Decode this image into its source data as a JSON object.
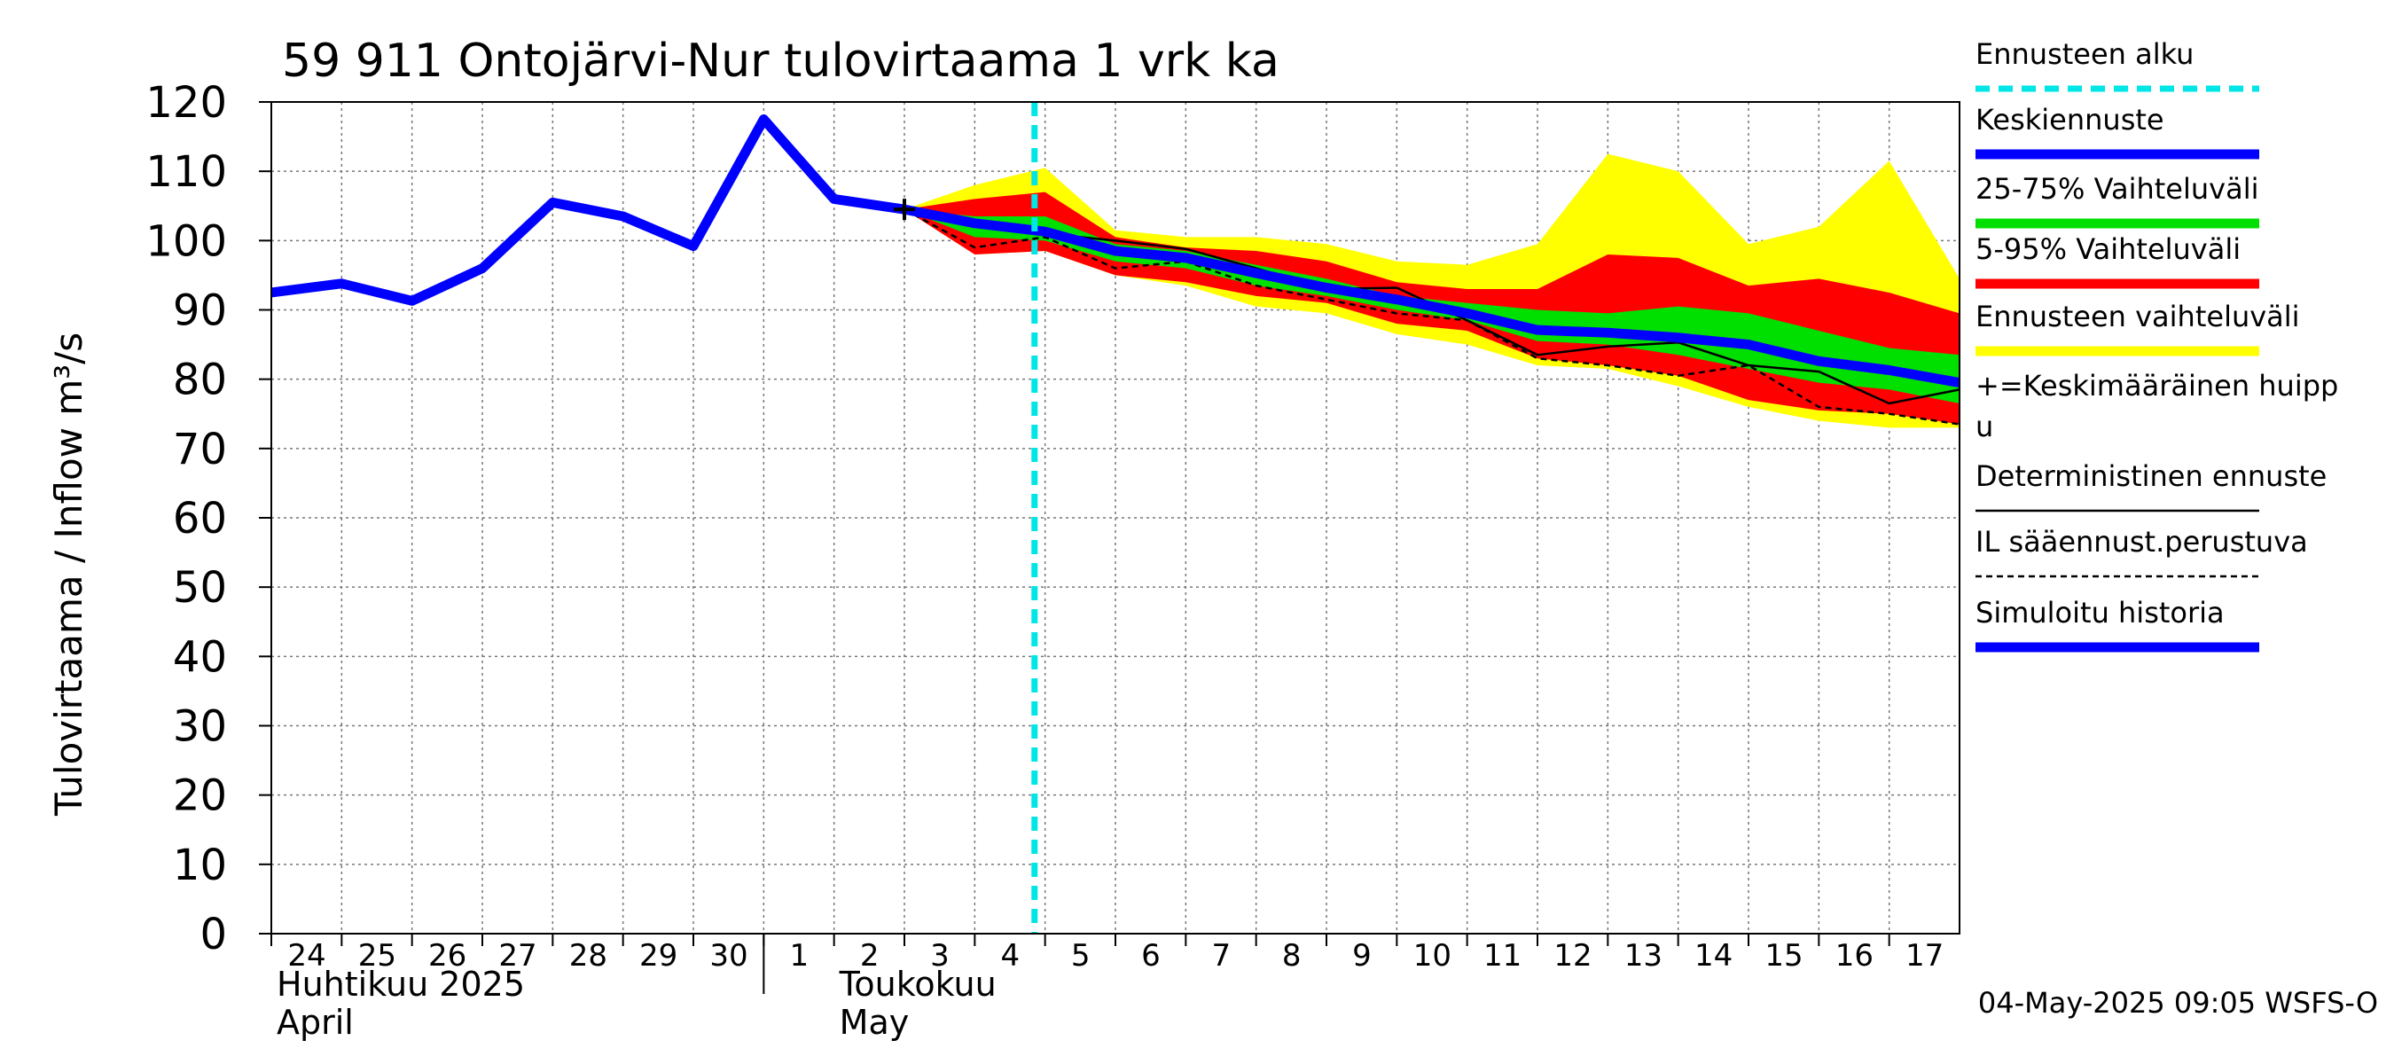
{
  "chart_data": {
    "type": "line",
    "title": "59 911 Ontojärvi-Nur tulovirtaama 1 vrk ka",
    "ylabel": "Tulovirtaama / Inflow    m³/s",
    "ylim": [
      0,
      120
    ],
    "yticks": [
      "0",
      "10",
      "20",
      "30",
      "40",
      "50",
      "60",
      "70",
      "80",
      "90",
      "100",
      "110",
      "120"
    ],
    "x_range": [
      24,
      48
    ],
    "x_tick_labels": [
      "24",
      "25",
      "26",
      "27",
      "28",
      "29",
      "30",
      "1",
      "2",
      "3",
      "4",
      "5",
      "6",
      "7",
      "8",
      "9",
      "10",
      "11",
      "12",
      "13",
      "14",
      "15",
      "16",
      "17"
    ],
    "month_labels": [
      {
        "line1": "Huhtikuu  2025",
        "line2": "April",
        "at": 24
      },
      {
        "line1": "Toukokuu",
        "line2": "May",
        "at": 32
      }
    ],
    "month_divider_at": 31,
    "forecast_start": 34.85,
    "simulated_history": {
      "name": "Simuloitu historia",
      "x": [
        24,
        25,
        26,
        27,
        28,
        29,
        30,
        31,
        32,
        33
      ],
      "y": [
        92.5,
        93.8,
        91.3,
        96,
        105.5,
        103.5,
        99.2,
        117.5,
        106,
        104.5
      ]
    },
    "mean_forecast": {
      "name": "Keskiennuste",
      "x": [
        33,
        34,
        35,
        36,
        37,
        38,
        39,
        40,
        41,
        42,
        43,
        44,
        45,
        46,
        47,
        48
      ],
      "y": [
        104.5,
        102.5,
        101.3,
        98.5,
        97.5,
        95.3,
        93.2,
        91.5,
        89.5,
        87.1,
        86.7,
        86,
        85,
        82.6,
        81.3,
        79.5
      ]
    },
    "deterministic_forecast": {
      "name": "Deterministinen ennuste",
      "x": [
        33,
        34,
        35,
        36,
        37,
        38,
        39,
        40,
        41,
        42,
        43,
        44,
        45,
        46,
        47,
        48
      ],
      "y": [
        104.5,
        103,
        101,
        100,
        98.8,
        96,
        93,
        93.2,
        88.5,
        83.5,
        84.7,
        85.3,
        82,
        81.1,
        76.5,
        78.5
      ]
    },
    "il_forecast": {
      "name": "IL sääennust.perustuva",
      "x": [
        33,
        34,
        35,
        36,
        37,
        38,
        39,
        40,
        41,
        42,
        43,
        44,
        45,
        46,
        47,
        48
      ],
      "y": [
        104.5,
        99,
        100.5,
        96,
        97,
        93.5,
        91.5,
        89.5,
        88.5,
        83,
        82,
        80.5,
        82,
        76,
        75,
        73.5
      ]
    },
    "band_5_95": {
      "name": "5-95% Vaihteluväli",
      "x": [
        33,
        34,
        35,
        36,
        37,
        38,
        39,
        40,
        41,
        42,
        43,
        44,
        45,
        46,
        47,
        48
      ],
      "upper": [
        104.5,
        106,
        107,
        100.5,
        99,
        98.5,
        97,
        94,
        93,
        93,
        98,
        97.5,
        93.5,
        94.5,
        92.5,
        89.5
      ],
      "lower": [
        104.5,
        98,
        98.5,
        95,
        94,
        92,
        91,
        88,
        87,
        83,
        82,
        80.5,
        77,
        75.5,
        75,
        73.5
      ]
    },
    "band_25_75": {
      "name": "25-75% Vaihteluväli",
      "x": [
        33,
        34,
        35,
        36,
        37,
        38,
        39,
        40,
        41,
        42,
        43,
        44,
        45,
        46,
        47,
        48
      ],
      "upper": [
        104.5,
        103.5,
        103.5,
        99.5,
        98.5,
        96.5,
        94.5,
        92,
        91,
        90,
        89.5,
        90.5,
        89.5,
        87,
        84.5,
        83.5
      ],
      "lower": [
        104.5,
        100.5,
        100,
        97,
        96,
        93.5,
        92,
        90,
        88.5,
        85.5,
        85,
        83.5,
        81.5,
        79.5,
        78.5,
        76.5
      ]
    },
    "ensemble_range": {
      "name": "Ennusteen vaihteluväli",
      "x": [
        33,
        34,
        35,
        36,
        37,
        38,
        39,
        40,
        41,
        42,
        43,
        44,
        45,
        46,
        47,
        48
      ],
      "upper": [
        104.5,
        108,
        110.5,
        101.5,
        100.5,
        100.5,
        99.5,
        97,
        96.5,
        99.5,
        112.5,
        110,
        99.5,
        102,
        111.5,
        94.5
      ],
      "lower": [
        104.5,
        98,
        98.5,
        95,
        93.5,
        90.5,
        89.5,
        86.5,
        85,
        82,
        81.5,
        79,
        76,
        74,
        73,
        73
      ]
    },
    "mean_peak": {
      "x": 33,
      "y": 104.5
    },
    "legend": [
      {
        "label": "Ennusteen alku",
        "color": "#00e5e5",
        "style": "dashed"
      },
      {
        "label": "Keskiennuste",
        "color": "#0000ff",
        "style": "thick"
      },
      {
        "label": "25-75% Vaihteluväli",
        "color": "#00e000",
        "style": "thick"
      },
      {
        "label": "5-95% Vaihteluväli",
        "color": "#ff0000",
        "style": "thick"
      },
      {
        "label": "Ennusteen vaihteluväli",
        "color": "#ffff00",
        "style": "thick"
      },
      {
        "label": "+=Keskimääräinen huipp",
        "label2": "u",
        "color": "#000000",
        "style": "marker"
      },
      {
        "label": "Deterministinen ennuste",
        "color": "#000000",
        "style": "thin"
      },
      {
        "label": "IL sääennust.perustuva",
        "color": "#000000",
        "style": "dotted"
      },
      {
        "label": "Simuloitu historia",
        "color": "#0000ff",
        "style": "thick"
      }
    ],
    "footer": "04-May-2025 09:05 WSFS-O"
  }
}
